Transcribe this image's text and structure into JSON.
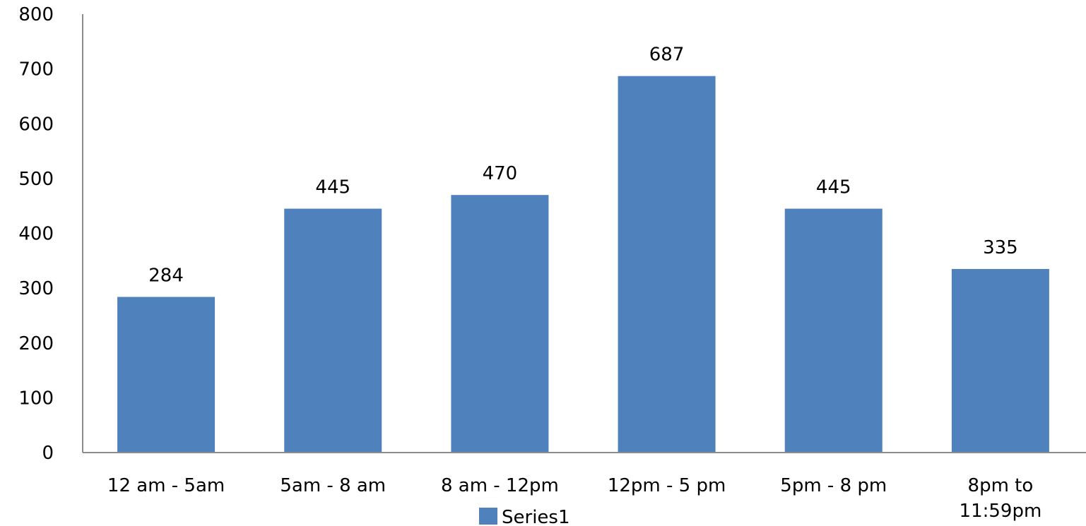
{
  "chart_data": {
    "type": "bar",
    "categories": [
      [
        "12 am - 5am"
      ],
      [
        "5am - 8 am"
      ],
      [
        "8 am - 12pm"
      ],
      [
        "12pm - 5 pm"
      ],
      [
        "5pm - 8 pm"
      ],
      [
        "8pm to",
        "11:59pm"
      ]
    ],
    "series": [
      {
        "name": "Series1",
        "values": [
          284,
          445,
          470,
          687,
          445,
          335
        ]
      }
    ],
    "data_labels": [
      "284",
      "445",
      "470",
      "687",
      "445",
      "335"
    ],
    "y_ticks": [
      "0",
      "100",
      "200",
      "300",
      "400",
      "500",
      "600",
      "700",
      "800"
    ],
    "ylim": [
      0,
      800
    ],
    "grid": false,
    "legend": {
      "position": "bottom",
      "entries": [
        "Series1"
      ]
    },
    "title": "",
    "xlabel": "",
    "ylabel": "",
    "colors": {
      "bar": "#4f81bd",
      "axis": "#8c8c8c"
    }
  }
}
